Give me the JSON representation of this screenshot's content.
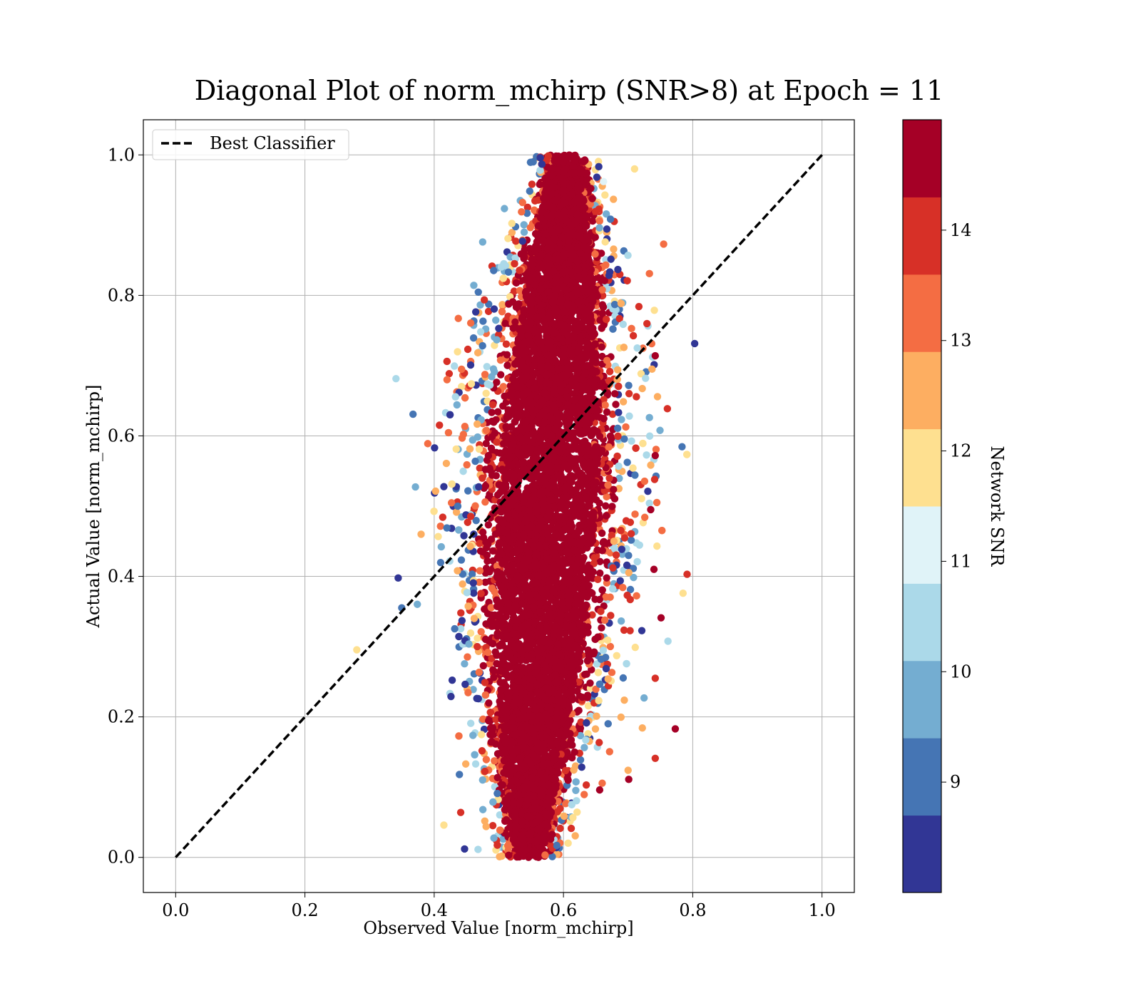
{
  "chart_data": {
    "type": "scatter",
    "title": "Diagonal Plot of norm_mchirp (SNR>8) at Epoch = 11",
    "xlabel": "Observed Value [norm_mchirp]",
    "ylabel": "Actual Value [norm_mchirp]",
    "xlim": [
      -0.05,
      1.05
    ],
    "ylim": [
      -0.05,
      1.05
    ],
    "xticks": [
      "0.0",
      "0.2",
      "0.4",
      "0.6",
      "0.8",
      "1.0"
    ],
    "yticks": [
      "0.0",
      "0.2",
      "0.4",
      "0.6",
      "0.8",
      "1.0"
    ],
    "grid": true,
    "legend": {
      "position": "top-left",
      "entries": [
        "Best Classifier"
      ]
    },
    "reference_line": {
      "name": "Best Classifier",
      "x": [
        0,
        1
      ],
      "y": [
        0,
        1
      ],
      "style": "dashed",
      "color": "#000000"
    },
    "colorbar": {
      "label": "Network SNR",
      "ticks": [
        "9",
        "10",
        "11",
        "12",
        "13",
        "14"
      ],
      "range": [
        8,
        15
      ],
      "colors": [
        "#313695",
        "#4575b4",
        "#74add1",
        "#abd9e9",
        "#e0f3f8",
        "#fee090",
        "#fdae61",
        "#f46d43",
        "#d73027",
        "#a50026"
      ]
    },
    "point_cloud": {
      "description_of_distribution": "dense vertical band",
      "center_x_range": [
        0.47,
        0.72
      ],
      "y_range": [
        0.0,
        1.0
      ],
      "dominant_color": "#a50026"
    },
    "outliers": [
      {
        "x": 0.755,
        "y": 0.873,
        "snr": 13.3
      },
      {
        "x": 0.733,
        "y": 0.831,
        "snr": 13.4
      },
      {
        "x": 0.737,
        "y": 0.695,
        "snr": 12.6
      },
      {
        "x": 0.742,
        "y": 0.714,
        "snr": 14.8
      },
      {
        "x": 0.742,
        "y": 0.572,
        "snr": 14.9
      },
      {
        "x": 0.741,
        "y": 0.538,
        "snr": 14.2
      },
      {
        "x": 0.735,
        "y": 0.495,
        "snr": 14.9
      },
      {
        "x": 0.74,
        "y": 0.41,
        "snr": 14.4
      },
      {
        "x": 0.785,
        "y": 0.376,
        "snr": 12.0
      },
      {
        "x": 0.751,
        "y": 0.341,
        "snr": 14.9
      },
      {
        "x": 0.742,
        "y": 0.255,
        "snr": 13.8
      },
      {
        "x": 0.773,
        "y": 0.183,
        "snr": 14.9
      },
      {
        "x": 0.742,
        "y": 0.141,
        "snr": 13.9
      },
      {
        "x": 0.656,
        "y": 0.096,
        "snr": 14.9
      },
      {
        "x": 0.701,
        "y": 0.111,
        "snr": 14.9
      },
      {
        "x": 0.7,
        "y": 0.124,
        "snr": 12.5
      },
      {
        "x": 0.733,
        "y": 0.626,
        "snr": 9.9
      },
      {
        "x": 0.727,
        "y": 0.682,
        "snr": 10.5
      },
      {
        "x": 0.446,
        "y": 0.458,
        "snr": 8.2
      },
      {
        "x": 0.443,
        "y": 0.337,
        "snr": 8.3
      },
      {
        "x": 0.426,
        "y": 0.229,
        "snr": 8.6
      },
      {
        "x": 0.439,
        "y": 0.118,
        "snr": 9.2
      },
      {
        "x": 0.415,
        "y": 0.046,
        "snr": 12.2
      },
      {
        "x": 0.447,
        "y": 0.012,
        "snr": 8.2
      },
      {
        "x": 0.436,
        "y": 0.408,
        "snr": 12.8
      },
      {
        "x": 0.441,
        "y": 0.064,
        "snr": 14.1
      },
      {
        "x": 0.475,
        "y": 0.876,
        "snr": 9.4
      },
      {
        "x": 0.472,
        "y": 0.748,
        "snr": 10.2
      },
      {
        "x": 0.71,
        "y": 0.98,
        "snr": 12.0
      },
      {
        "x": 0.662,
        "y": 0.962,
        "snr": 10.8
      }
    ]
  }
}
